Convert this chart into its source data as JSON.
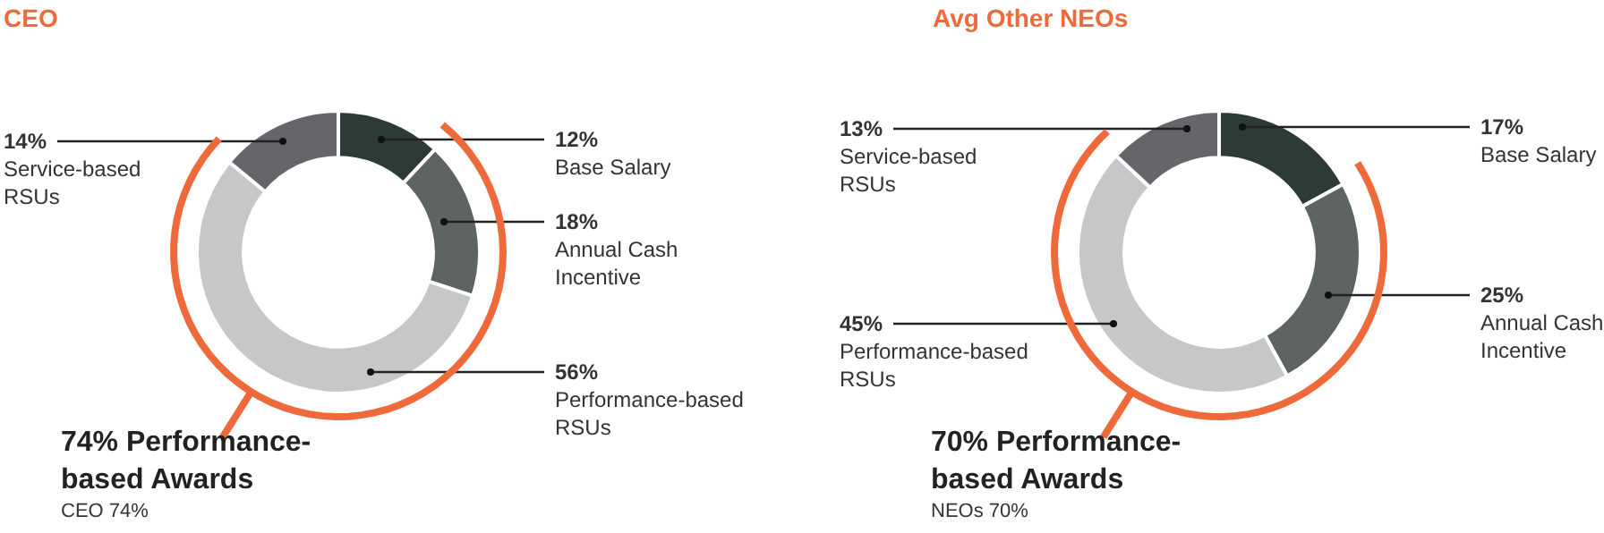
{
  "chart_data": [
    {
      "type": "donut",
      "title": "CEO",
      "categories": [
        "Base Salary",
        "Annual Cash Incentive",
        "Performance-based RSUs",
        "Service-based RSUs"
      ],
      "values": [
        12,
        18,
        56,
        14
      ],
      "value_labels": [
        "12%",
        "18%",
        "56%",
        "14%"
      ],
      "colors": [
        "#2c3a38",
        "#5e6462",
        "#c6c7c9",
        "#66656a"
      ],
      "annotations": [
        "74% Performance-based Awards",
        "CEO 74%"
      ]
    },
    {
      "type": "donut",
      "title": "Avg Other NEOs",
      "categories": [
        "Base Salary",
        "Annual Cash Incentive",
        "Performance-based RSUs",
        "Service-based RSUs"
      ],
      "values": [
        17,
        25,
        45,
        13
      ],
      "value_labels": [
        "17%",
        "25%",
        "45%",
        "13%"
      ],
      "colors": [
        "#2c3a38",
        "#5e6462",
        "#c6c7c9",
        "#66656a"
      ],
      "annotations": [
        "70% Performance-based Awards",
        "NEOs 70%"
      ]
    }
  ]
}
